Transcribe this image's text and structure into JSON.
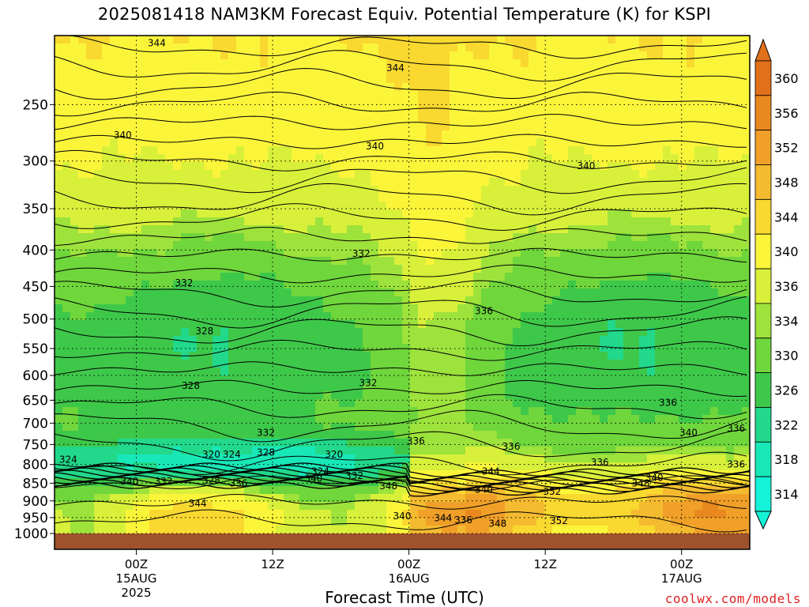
{
  "chart_data": {
    "type": "heatmap",
    "title": "2025081418 NAM3KM Forecast Equiv. Potential Temperature (K) for KSPI",
    "xlabel": "Forecast Time (UTC)",
    "ylabel": "",
    "y_scale": "log-pressure",
    "ylim": [
      1000,
      200
    ],
    "y_ticks": [
      250,
      300,
      350,
      400,
      450,
      500,
      550,
      600,
      650,
      700,
      750,
      800,
      850,
      900,
      950,
      1000
    ],
    "x_range_hours": [
      -6,
      45
    ],
    "x_ticks": [
      {
        "hour": 0,
        "lines": [
          "00Z",
          "15AUG",
          "2025"
        ]
      },
      {
        "hour": 10,
        "lines": [
          "12Z"
        ]
      },
      {
        "hour": 20,
        "lines": [
          "00Z",
          "16AUG"
        ]
      },
      {
        "hour": 30,
        "lines": [
          "12Z"
        ]
      },
      {
        "hour": 40,
        "lines": [
          "00Z",
          "17AUG"
        ]
      }
    ],
    "colorbar": {
      "labels": [
        360,
        356,
        352,
        348,
        344,
        340,
        336,
        334,
        330,
        326,
        322,
        318,
        314
      ],
      "colors": [
        "#e0701a",
        "#e8881e",
        "#f0a028",
        "#f5bb30",
        "#f9d830",
        "#fbf53a",
        "#d8f03a",
        "#9ee23c",
        "#6fd63c",
        "#3ec84a",
        "#22d88a",
        "#18e8b8",
        "#14f2d8"
      ]
    },
    "surface_color": "#a0522d",
    "grid": true,
    "contour_labels": [
      {
        "value": 344,
        "hour": 1.5,
        "p": 205
      },
      {
        "value": 344,
        "hour": 19,
        "p": 222
      },
      {
        "value": 340,
        "hour": -1,
        "p": 276
      },
      {
        "value": 340,
        "hour": 17.5,
        "p": 286
      },
      {
        "value": 340,
        "hour": 33,
        "p": 305
      },
      {
        "value": 332,
        "hour": 16.5,
        "p": 405
      },
      {
        "value": 332,
        "hour": 3.5,
        "p": 445
      },
      {
        "value": 328,
        "hour": 5,
        "p": 520
      },
      {
        "value": 336,
        "hour": 25.5,
        "p": 487
      },
      {
        "value": 328,
        "hour": 4,
        "p": 620
      },
      {
        "value": 332,
        "hour": 17,
        "p": 615
      },
      {
        "value": 332,
        "hour": 9.5,
        "p": 722
      },
      {
        "value": 336,
        "hour": 39,
        "p": 655
      },
      {
        "value": 336,
        "hour": 44,
        "p": 712
      },
      {
        "value": 340,
        "hour": 40.5,
        "p": 722
      },
      {
        "value": 336,
        "hour": 27.5,
        "p": 755
      },
      {
        "value": 336,
        "hour": 20.5,
        "p": 742
      },
      {
        "value": 320,
        "hour": 5.5,
        "p": 775
      },
      {
        "value": 324,
        "hour": 7,
        "p": 775
      },
      {
        "value": 328,
        "hour": 9.5,
        "p": 770
      },
      {
        "value": 320,
        "hour": 14.5,
        "p": 775
      },
      {
        "value": 324,
        "hour": -5,
        "p": 788
      },
      {
        "value": 336,
        "hour": 34,
        "p": 795
      },
      {
        "value": 336,
        "hour": 44,
        "p": 800
      },
      {
        "value": 324,
        "hour": 13.5,
        "p": 818
      },
      {
        "value": 344,
        "hour": 26,
        "p": 818
      },
      {
        "value": 340,
        "hour": 13,
        "p": 837
      },
      {
        "value": 332,
        "hour": 16,
        "p": 830
      },
      {
        "value": 340,
        "hour": -0.5,
        "p": 845
      },
      {
        "value": 332,
        "hour": 2,
        "p": 845
      },
      {
        "value": 328,
        "hour": 5.5,
        "p": 843
      },
      {
        "value": 336,
        "hour": 7.5,
        "p": 850
      },
      {
        "value": 348,
        "hour": 37,
        "p": 850
      },
      {
        "value": 340,
        "hour": 38,
        "p": 835
      },
      {
        "value": 348,
        "hour": 18.5,
        "p": 858
      },
      {
        "value": 340,
        "hour": 25.5,
        "p": 868
      },
      {
        "value": 352,
        "hour": 30.5,
        "p": 873
      },
      {
        "value": 344,
        "hour": 4.5,
        "p": 908
      },
      {
        "value": 340,
        "hour": 19.5,
        "p": 945
      },
      {
        "value": 344,
        "hour": 22.5,
        "p": 952
      },
      {
        "value": 336,
        "hour": 24,
        "p": 957
      },
      {
        "value": 348,
        "hour": 26.5,
        "p": 968
      },
      {
        "value": 352,
        "hour": 31,
        "p": 960
      }
    ]
  },
  "credit": "coolwx.com/models"
}
